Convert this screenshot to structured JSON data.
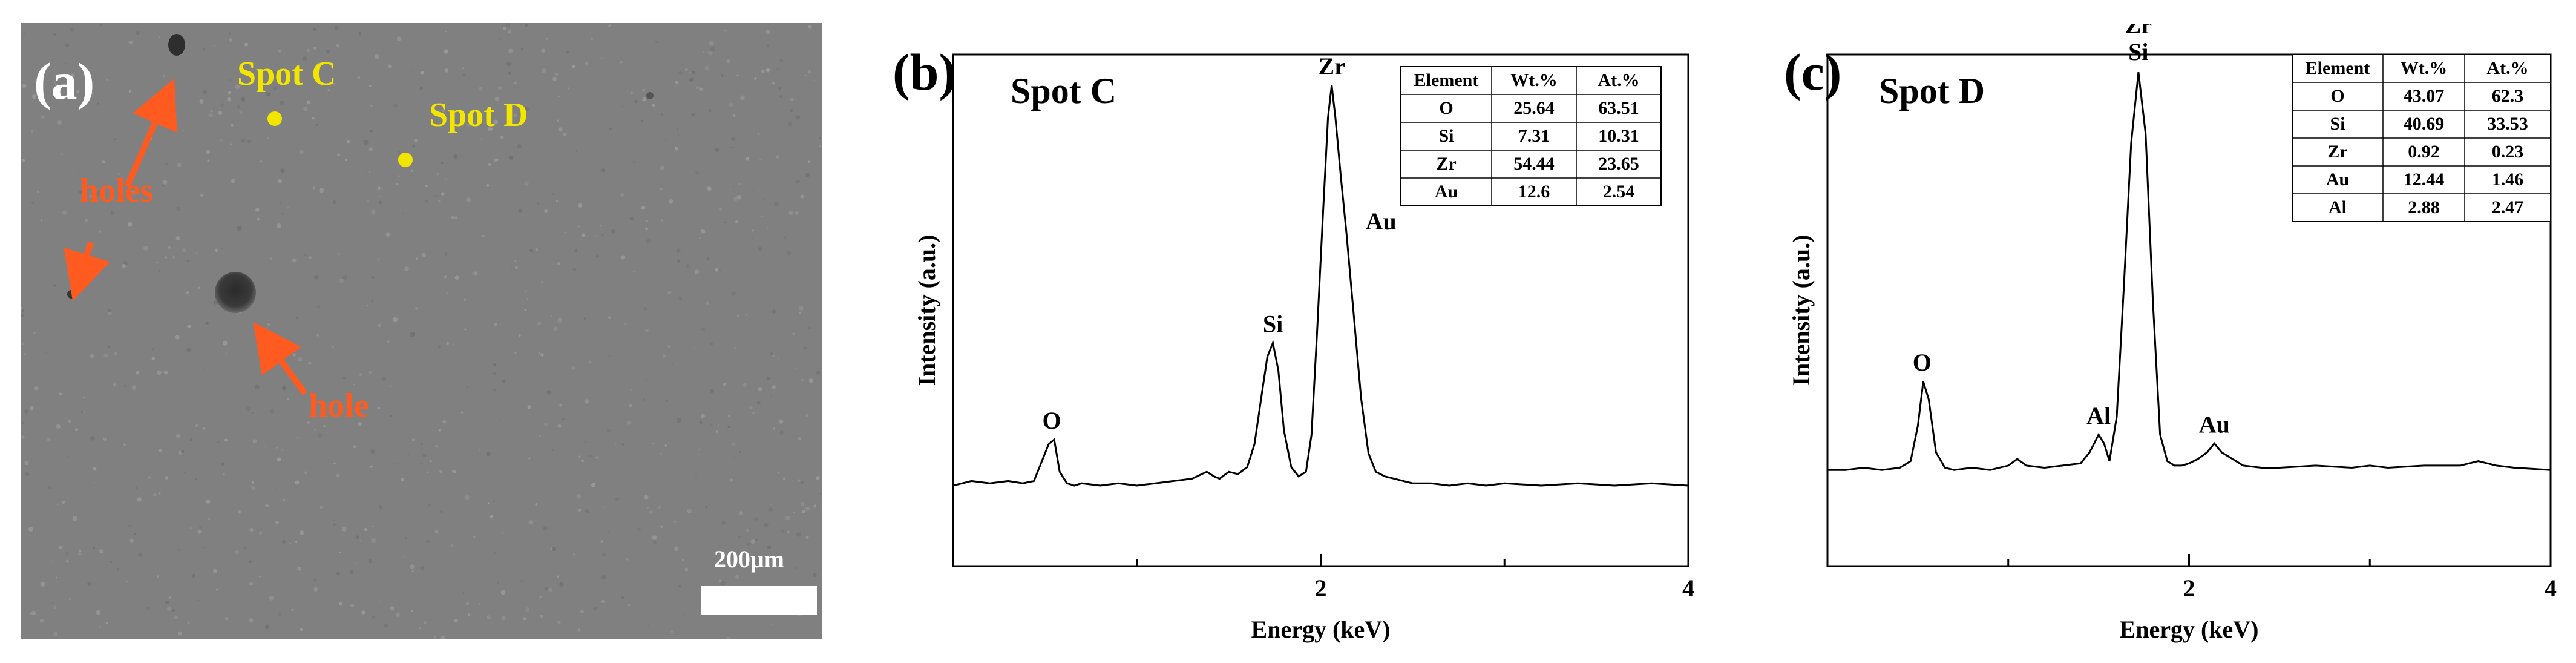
{
  "panel_a": {
    "letter": "(a)",
    "spot_c": "Spot C",
    "spot_d": "Spot D",
    "holes_label": "holes",
    "hole_label": "hole",
    "scale_bar": "200μm",
    "colors": {
      "background": "#808080",
      "spot": "#f2e600",
      "annotation": "#ff5a1f"
    }
  },
  "chart_data": [
    {
      "type": "line",
      "panel": "(b)",
      "title": "Spot C",
      "xlabel": "Energy (keV)",
      "ylabel": "Intensity (a.u.)",
      "xlim": [
        0,
        4
      ],
      "xticks": [
        2,
        4
      ],
      "ylim": [
        0,
        100
      ],
      "series": [
        {
          "x": [
            0.0,
            0.1,
            0.2,
            0.3,
            0.38,
            0.44,
            0.48,
            0.52,
            0.55,
            0.58,
            0.62,
            0.66,
            0.7,
            0.8,
            0.9,
            1.0,
            1.1,
            1.2,
            1.3,
            1.38,
            1.42,
            1.45,
            1.5,
            1.55,
            1.6,
            1.64,
            1.68,
            1.71,
            1.74,
            1.77,
            1.8,
            1.84,
            1.88,
            1.92,
            1.95,
            1.98,
            2.01,
            2.04,
            2.06,
            2.08,
            2.11,
            2.14,
            2.18,
            2.22,
            2.26,
            2.3,
            2.35,
            2.4,
            2.45,
            2.5,
            2.6,
            2.7,
            2.8,
            2.9,
            3.0,
            3.2,
            3.4,
            3.6,
            3.8,
            4.0
          ],
          "values": [
            5,
            6,
            5.5,
            6,
            5.5,
            6,
            10,
            14,
            15,
            8,
            5.5,
            5,
            5.5,
            5,
            5.5,
            5,
            5.5,
            6,
            6.5,
            8,
            7,
            6.5,
            8,
            7.5,
            9,
            14,
            25,
            33,
            36,
            30,
            17,
            9,
            7,
            8,
            16,
            38,
            62,
            85,
            92,
            85,
            72,
            60,
            42,
            24,
            12,
            8,
            7,
            6.5,
            6,
            5.5,
            5.5,
            5,
            5.5,
            5,
            5.5,
            5,
            5.5,
            5,
            5.5,
            5
          ]
        }
      ],
      "peak_labels": [
        {
          "text": "O",
          "x": 0.55,
          "y": 15
        },
        {
          "text": "Si",
          "x": 1.74,
          "y": 36
        },
        {
          "text": "Zr",
          "x": 2.06,
          "y": 92
        },
        {
          "text": "Au",
          "x": 2.18,
          "y": 62
        }
      ],
      "table": {
        "headers": [
          "Element",
          "Wt.%",
          "At.%"
        ],
        "rows": [
          [
            "O",
            "25.64",
            "63.51"
          ],
          [
            "Si",
            "7.31",
            "10.31"
          ],
          [
            "Zr",
            "54.44",
            "23.65"
          ],
          [
            "Au",
            "12.6",
            "2.54"
          ]
        ]
      }
    },
    {
      "type": "line",
      "panel": "(c)",
      "title": "Spot D",
      "xlabel": "Energy (keV)",
      "ylabel": "Intensity (a.u.)",
      "xlim": [
        0,
        4
      ],
      "xticks": [
        2,
        4
      ],
      "ylim": [
        0,
        100
      ],
      "series": [
        {
          "x": [
            0.0,
            0.1,
            0.2,
            0.3,
            0.4,
            0.46,
            0.5,
            0.53,
            0.56,
            0.6,
            0.65,
            0.7,
            0.8,
            0.9,
            1.0,
            1.05,
            1.1,
            1.2,
            1.3,
            1.4,
            1.45,
            1.5,
            1.53,
            1.56,
            1.6,
            1.64,
            1.68,
            1.72,
            1.76,
            1.8,
            1.84,
            1.88,
            1.92,
            1.96,
            2.0,
            2.05,
            2.1,
            2.14,
            2.18,
            2.22,
            2.3,
            2.4,
            2.5,
            2.7,
            2.9,
            3.0,
            3.1,
            3.3,
            3.5,
            3.6,
            3.7,
            3.8,
            4.0
          ],
          "values": [
            6,
            6,
            6.5,
            6,
            6.5,
            8,
            16,
            26,
            22,
            10,
            6.5,
            6,
            6.5,
            6,
            7,
            8.5,
            7,
            6.5,
            7,
            7.5,
            10,
            14,
            12,
            8,
            18,
            48,
            80,
            96,
            82,
            44,
            14,
            8,
            7,
            7,
            7.5,
            8.5,
            10,
            12,
            10,
            9,
            7,
            6.5,
            6.5,
            7,
            6.5,
            7,
            6.5,
            7,
            7,
            8,
            7,
            6.5,
            6
          ]
        }
      ],
      "peak_labels": [
        {
          "text": "O",
          "x": 0.53,
          "y": 26
        },
        {
          "text": "Al",
          "x": 1.5,
          "y": 14
        },
        {
          "text": "Zr",
          "x": 1.72,
          "y": 96
        },
        {
          "text": "Si",
          "x": 1.72,
          "y": 96
        },
        {
          "text": "Au",
          "x": 2.14,
          "y": 12
        }
      ],
      "table": {
        "headers": [
          "Element",
          "Wt.%",
          "At.%"
        ],
        "rows": [
          [
            "O",
            "43.07",
            "62.3"
          ],
          [
            "Si",
            "40.69",
            "33.53"
          ],
          [
            "Zr",
            "0.92",
            "0.23"
          ],
          [
            "Au",
            "12.44",
            "1.46"
          ],
          [
            "Al",
            "2.88",
            "2.47"
          ]
        ]
      }
    }
  ]
}
